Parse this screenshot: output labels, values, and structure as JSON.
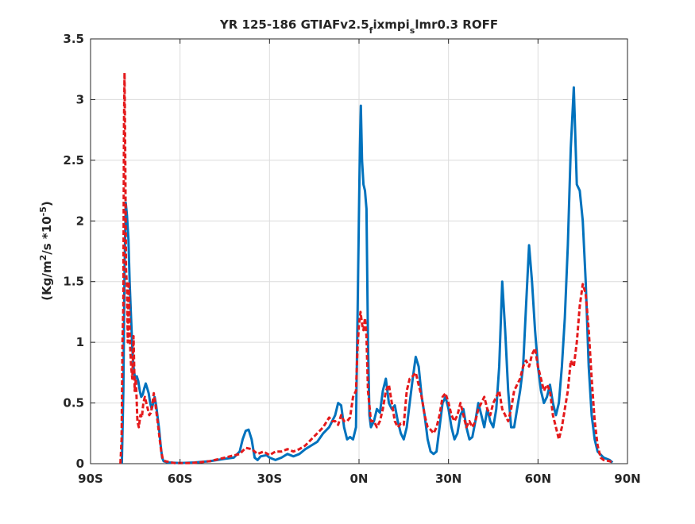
{
  "chart_data": {
    "type": "line",
    "title_main": "YR 125-186 GTIAFv2.5",
    "title_sub1": "f",
    "title_mid": "ixmpi",
    "title_sub2": "s",
    "title_tail": "lmr0.3 ROFF",
    "ylabel_a": "(Kg/m",
    "ylabel_sup1": "2",
    "ylabel_b": "/s   *10",
    "ylabel_sup2": "-5",
    "ylabel_c": ")",
    "xlim": [
      -90,
      90
    ],
    "ylim": [
      0,
      3.5
    ],
    "xticks": [
      {
        "value": -90,
        "label": "90S"
      },
      {
        "value": -60,
        "label": "60S"
      },
      {
        "value": -30,
        "label": "30S"
      },
      {
        "value": 0,
        "label": "0N"
      },
      {
        "value": 30,
        "label": "30N"
      },
      {
        "value": 60,
        "label": "60N"
      },
      {
        "value": 90,
        "label": "90N"
      }
    ],
    "yticks": [
      {
        "value": 0,
        "label": "0"
      },
      {
        "value": 0.5,
        "label": "0.5"
      },
      {
        "value": 1,
        "label": "1"
      },
      {
        "value": 1.5,
        "label": "1.5"
      },
      {
        "value": 2,
        "label": "2"
      },
      {
        "value": 2.5,
        "label": "2.5"
      },
      {
        "value": 3,
        "label": "3"
      },
      {
        "value": 3.5,
        "label": "3.5"
      }
    ],
    "grid": true,
    "series": [
      {
        "color": "#0072BD",
        "style": "solid",
        "points": [
          [
            -79.5,
            0
          ],
          [
            -79.0,
            0.6
          ],
          [
            -78.6,
            1.6
          ],
          [
            -78.2,
            2.15
          ],
          [
            -77.8,
            2.05
          ],
          [
            -77.3,
            1.85
          ],
          [
            -76.9,
            1.5
          ],
          [
            -76.5,
            1.25
          ],
          [
            -76.0,
            0.95
          ],
          [
            -75.6,
            0.8
          ],
          [
            -75.1,
            0.7
          ],
          [
            -74.5,
            0.72
          ],
          [
            -74.0,
            0.68
          ],
          [
            -73.5,
            0.6
          ],
          [
            -73.0,
            0.55
          ],
          [
            -72.5,
            0.57
          ],
          [
            -72.0,
            0.62
          ],
          [
            -71.5,
            0.66
          ],
          [
            -71.0,
            0.62
          ],
          [
            -70.5,
            0.58
          ],
          [
            -70.0,
            0.5
          ],
          [
            -69.5,
            0.45
          ],
          [
            -69.0,
            0.5
          ],
          [
            -68.5,
            0.55
          ],
          [
            -68.0,
            0.48
          ],
          [
            -67.5,
            0.38
          ],
          [
            -67.0,
            0.28
          ],
          [
            -66.5,
            0.15
          ],
          [
            -66.0,
            0.05
          ],
          [
            -65.5,
            0.02
          ],
          [
            -64.0,
            0.01
          ],
          [
            -60,
            0.005
          ],
          [
            -55,
            0.01
          ],
          [
            -50,
            0.02
          ],
          [
            -45,
            0.04
          ],
          [
            -42,
            0.05
          ],
          [
            -40,
            0.1
          ],
          [
            -39,
            0.2
          ],
          [
            -38,
            0.27
          ],
          [
            -37,
            0.28
          ],
          [
            -36,
            0.2
          ],
          [
            -35,
            0.05
          ],
          [
            -34,
            0.03
          ],
          [
            -33,
            0.06
          ],
          [
            -31,
            0.07
          ],
          [
            -30,
            0.05
          ],
          [
            -28,
            0.03
          ],
          [
            -26,
            0.05
          ],
          [
            -24,
            0.08
          ],
          [
            -22,
            0.06
          ],
          [
            -20,
            0.08
          ],
          [
            -18,
            0.12
          ],
          [
            -16,
            0.15
          ],
          [
            -14,
            0.18
          ],
          [
            -12,
            0.25
          ],
          [
            -10,
            0.3
          ],
          [
            -8,
            0.4
          ],
          [
            -7,
            0.5
          ],
          [
            -6,
            0.48
          ],
          [
            -5,
            0.3
          ],
          [
            -4,
            0.2
          ],
          [
            -3,
            0.22
          ],
          [
            -2,
            0.2
          ],
          [
            -1,
            0.3
          ],
          [
            -0.5,
            1.2
          ],
          [
            0,
            2.1
          ],
          [
            0.3,
            2.6
          ],
          [
            0.6,
            2.95
          ],
          [
            1.0,
            2.5
          ],
          [
            1.5,
            2.3
          ],
          [
            2.0,
            2.25
          ],
          [
            2.5,
            2.1
          ],
          [
            3.0,
            1.0
          ],
          [
            3.5,
            0.4
          ],
          [
            4,
            0.3
          ],
          [
            5,
            0.35
          ],
          [
            6,
            0.45
          ],
          [
            7,
            0.42
          ],
          [
            8,
            0.6
          ],
          [
            9,
            0.7
          ],
          [
            10,
            0.5
          ],
          [
            11,
            0.45
          ],
          [
            12,
            0.48
          ],
          [
            13,
            0.35
          ],
          [
            14,
            0.25
          ],
          [
            15,
            0.2
          ],
          [
            16,
            0.3
          ],
          [
            17,
            0.5
          ],
          [
            18,
            0.7
          ],
          [
            19,
            0.88
          ],
          [
            20,
            0.8
          ],
          [
            21,
            0.55
          ],
          [
            22,
            0.4
          ],
          [
            23,
            0.2
          ],
          [
            24,
            0.1
          ],
          [
            25,
            0.08
          ],
          [
            26,
            0.1
          ],
          [
            27,
            0.3
          ],
          [
            28,
            0.5
          ],
          [
            29,
            0.55
          ],
          [
            30,
            0.45
          ],
          [
            31,
            0.3
          ],
          [
            32,
            0.2
          ],
          [
            33,
            0.25
          ],
          [
            34,
            0.4
          ],
          [
            35,
            0.45
          ],
          [
            36,
            0.3
          ],
          [
            37,
            0.2
          ],
          [
            38,
            0.22
          ],
          [
            39,
            0.35
          ],
          [
            40,
            0.5
          ],
          [
            41,
            0.4
          ],
          [
            42,
            0.3
          ],
          [
            43,
            0.45
          ],
          [
            44,
            0.35
          ],
          [
            45,
            0.3
          ],
          [
            46,
            0.45
          ],
          [
            47,
            0.8
          ],
          [
            48,
            1.5
          ],
          [
            49,
            1.1
          ],
          [
            50,
            0.6
          ],
          [
            51,
            0.3
          ],
          [
            52,
            0.3
          ],
          [
            53,
            0.45
          ],
          [
            54,
            0.6
          ],
          [
            55,
            0.8
          ],
          [
            56,
            1.3
          ],
          [
            57,
            1.8
          ],
          [
            58,
            1.5
          ],
          [
            59,
            1.1
          ],
          [
            60,
            0.8
          ],
          [
            61,
            0.6
          ],
          [
            62,
            0.5
          ],
          [
            63,
            0.55
          ],
          [
            64,
            0.65
          ],
          [
            65,
            0.5
          ],
          [
            66,
            0.4
          ],
          [
            67,
            0.5
          ],
          [
            68,
            0.8
          ],
          [
            69,
            1.2
          ],
          [
            70,
            1.8
          ],
          [
            71,
            2.6
          ],
          [
            72,
            3.1
          ],
          [
            73,
            2.3
          ],
          [
            74,
            2.25
          ],
          [
            75,
            2.0
          ],
          [
            76,
            1.5
          ],
          [
            77,
            0.8
          ],
          [
            78,
            0.4
          ],
          [
            79,
            0.2
          ],
          [
            80,
            0.1
          ],
          [
            82,
            0.05
          ],
          [
            84,
            0.03
          ],
          [
            85,
            0.01
          ]
        ]
      },
      {
        "color": "#E41A1C",
        "style": "dashed",
        "points": [
          [
            -80,
            0
          ],
          [
            -79.6,
            0.2
          ],
          [
            -79.3,
            1.0
          ],
          [
            -79.0,
            1.3
          ],
          [
            -78.8,
            2.8
          ],
          [
            -78.6,
            3.22
          ],
          [
            -78.4,
            2.6
          ],
          [
            -78.1,
            1.6
          ],
          [
            -77.8,
            1.45
          ],
          [
            -77.5,
            1.0
          ],
          [
            -77.2,
            1.5
          ],
          [
            -76.8,
            1.0
          ],
          [
            -76.4,
            0.8
          ],
          [
            -76.0,
            0.7
          ],
          [
            -75.6,
            1.05
          ],
          [
            -75.2,
            0.6
          ],
          [
            -74.8,
            0.7
          ],
          [
            -74.3,
            0.35
          ],
          [
            -73.8,
            0.3
          ],
          [
            -73.3,
            0.4
          ],
          [
            -72.8,
            0.38
          ],
          [
            -72.3,
            0.5
          ],
          [
            -71.8,
            0.55
          ],
          [
            -71.3,
            0.5
          ],
          [
            -70.8,
            0.45
          ],
          [
            -70.3,
            0.4
          ],
          [
            -69.8,
            0.42
          ],
          [
            -69.3,
            0.48
          ],
          [
            -68.8,
            0.58
          ],
          [
            -68.3,
            0.5
          ],
          [
            -67.8,
            0.4
          ],
          [
            -67.3,
            0.3
          ],
          [
            -66.8,
            0.2
          ],
          [
            -66.3,
            0.1
          ],
          [
            -65.8,
            0.04
          ],
          [
            -65.0,
            0.02
          ],
          [
            -62,
            0.005
          ],
          [
            -56,
            0.005
          ],
          [
            -50,
            0.02
          ],
          [
            -45,
            0.05
          ],
          [
            -40,
            0.08
          ],
          [
            -38,
            0.13
          ],
          [
            -36,
            0.12
          ],
          [
            -34,
            0.08
          ],
          [
            -32,
            0.1
          ],
          [
            -30,
            0.07
          ],
          [
            -28,
            0.1
          ],
          [
            -26,
            0.1
          ],
          [
            -24,
            0.12
          ],
          [
            -22,
            0.1
          ],
          [
            -20,
            0.12
          ],
          [
            -18,
            0.15
          ],
          [
            -16,
            0.2
          ],
          [
            -14,
            0.25
          ],
          [
            -12,
            0.3
          ],
          [
            -10,
            0.38
          ],
          [
            -9,
            0.35
          ],
          [
            -8,
            0.35
          ],
          [
            -7,
            0.32
          ],
          [
            -6,
            0.4
          ],
          [
            -5,
            0.35
          ],
          [
            -4,
            0.35
          ],
          [
            -3,
            0.38
          ],
          [
            -2,
            0.55
          ],
          [
            -1,
            0.6
          ],
          [
            -0.5,
            0.95
          ],
          [
            0,
            1.15
          ],
          [
            0.5,
            1.25
          ],
          [
            1,
            1.15
          ],
          [
            1.5,
            1.1
          ],
          [
            2,
            1.2
          ],
          [
            2.5,
            1.05
          ],
          [
            3,
            0.6
          ],
          [
            4,
            0.35
          ],
          [
            5,
            0.35
          ],
          [
            6,
            0.3
          ],
          [
            7,
            0.35
          ],
          [
            8,
            0.45
          ],
          [
            9,
            0.6
          ],
          [
            10,
            0.65
          ],
          [
            11,
            0.5
          ],
          [
            12,
            0.35
          ],
          [
            13,
            0.3
          ],
          [
            14,
            0.33
          ],
          [
            15,
            0.32
          ],
          [
            16,
            0.6
          ],
          [
            17,
            0.7
          ],
          [
            18,
            0.72
          ],
          [
            19,
            0.75
          ],
          [
            20,
            0.65
          ],
          [
            21,
            0.55
          ],
          [
            22,
            0.4
          ],
          [
            23,
            0.3
          ],
          [
            24,
            0.28
          ],
          [
            25,
            0.25
          ],
          [
            26,
            0.3
          ],
          [
            27,
            0.4
          ],
          [
            28,
            0.55
          ],
          [
            29,
            0.58
          ],
          [
            30,
            0.5
          ],
          [
            31,
            0.4
          ],
          [
            32,
            0.35
          ],
          [
            33,
            0.4
          ],
          [
            34,
            0.5
          ],
          [
            35,
            0.4
          ],
          [
            36,
            0.3
          ],
          [
            37,
            0.35
          ],
          [
            38,
            0.3
          ],
          [
            39,
            0.35
          ],
          [
            40,
            0.45
          ],
          [
            41,
            0.5
          ],
          [
            42,
            0.55
          ],
          [
            43,
            0.45
          ],
          [
            44,
            0.4
          ],
          [
            45,
            0.5
          ],
          [
            46,
            0.55
          ],
          [
            47,
            0.6
          ],
          [
            48,
            0.45
          ],
          [
            49,
            0.4
          ],
          [
            50,
            0.35
          ],
          [
            51,
            0.45
          ],
          [
            52,
            0.6
          ],
          [
            53,
            0.65
          ],
          [
            54,
            0.7
          ],
          [
            55,
            0.8
          ],
          [
            56,
            0.85
          ],
          [
            57,
            0.8
          ],
          [
            58,
            0.9
          ],
          [
            59,
            0.95
          ],
          [
            60,
            0.8
          ],
          [
            61,
            0.7
          ],
          [
            62,
            0.6
          ],
          [
            63,
            0.65
          ],
          [
            64,
            0.6
          ],
          [
            65,
            0.4
          ],
          [
            66,
            0.3
          ],
          [
            67,
            0.2
          ],
          [
            68,
            0.3
          ],
          [
            69,
            0.45
          ],
          [
            70,
            0.6
          ],
          [
            71,
            0.85
          ],
          [
            72,
            0.8
          ],
          [
            73,
            1.0
          ],
          [
            74,
            1.3
          ],
          [
            75,
            1.48
          ],
          [
            76,
            1.4
          ],
          [
            77,
            1.1
          ],
          [
            78,
            0.7
          ],
          [
            79,
            0.35
          ],
          [
            80,
            0.15
          ],
          [
            81,
            0.05
          ],
          [
            82,
            0.03
          ],
          [
            84,
            0.02
          ],
          [
            85,
            0.01
          ]
        ]
      }
    ]
  }
}
